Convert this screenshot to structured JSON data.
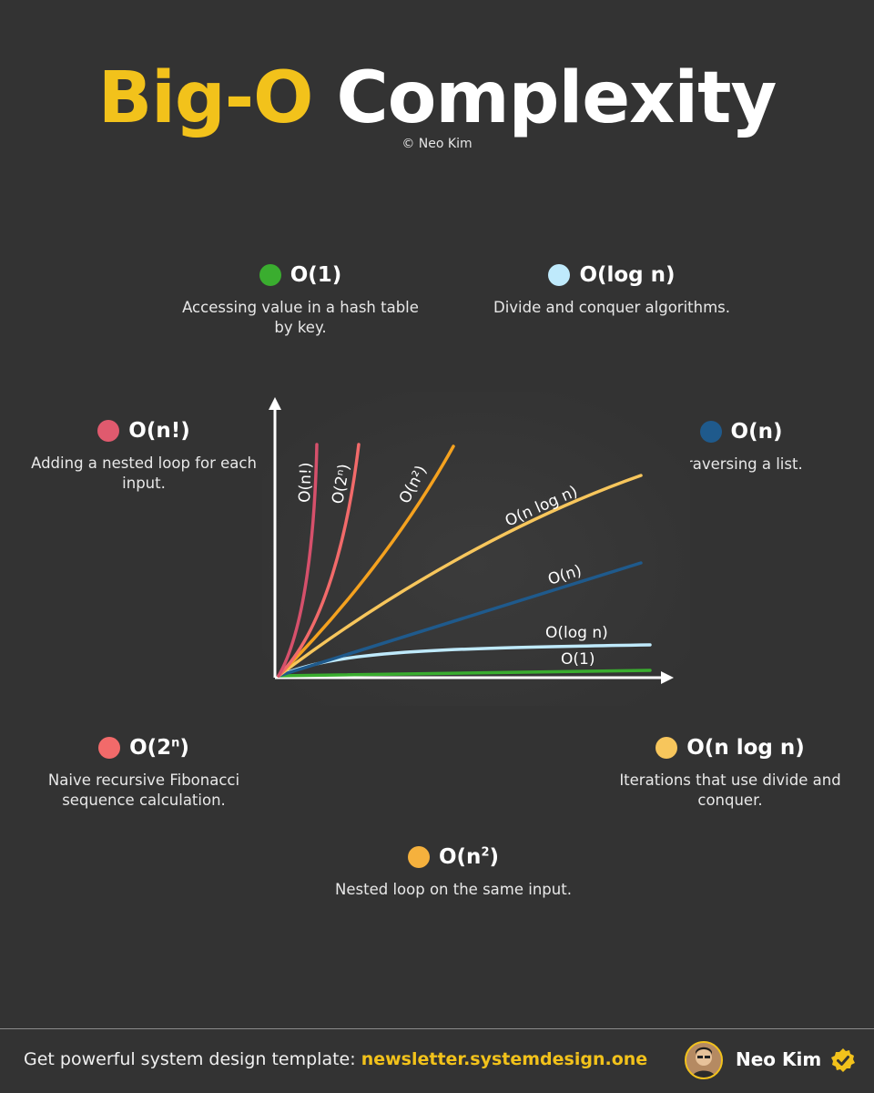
{
  "header": {
    "title_highlight": "Big-O",
    "title_rest": "Complexity",
    "copyright": "© Neo Kim"
  },
  "legend": [
    {
      "label": "O(1)",
      "description": "Accessing value in a hash table by key.",
      "color": "#3aad2f"
    },
    {
      "label": "O(log n)",
      "description": "Divide and conquer algorithms.",
      "color": "#bfeafc"
    },
    {
      "label": "O(n!)",
      "description": "Adding a nested loop for each input.",
      "color": "#e05a6e"
    },
    {
      "label": "O(n)",
      "description": "Traversing a list.",
      "color": "#1f5a8c"
    },
    {
      "label_base": "O(2",
      "label_sup": "n",
      "label_end": ")",
      "description": "Naive recursive Fibonacci sequence calculation.",
      "color": "#f26a6a"
    },
    {
      "label": "O(n log n)",
      "description": "Iterations that use divide and conquer.",
      "color": "#f7c65c"
    },
    {
      "label_base": "O(n",
      "label_sup": "2",
      "label_end": ")",
      "description": "Nested loop on the same input.",
      "color": "#f5b13d"
    }
  ],
  "chart_data": {
    "type": "line",
    "series": [
      {
        "name": "O(1)",
        "color": "#3aad2f"
      },
      {
        "name": "O(log n)",
        "color": "#bfeafc"
      },
      {
        "name": "O(n)",
        "color": "#1f5a8c"
      },
      {
        "name": "O(n log n)",
        "color": "#f7c65c"
      },
      {
        "name": "O(n²)",
        "color": "#f5a21f"
      },
      {
        "name": "O(2ⁿ)",
        "color": "#f26a6a"
      },
      {
        "name": "O(n!)",
        "color": "#d6506b"
      }
    ],
    "grid": false
  },
  "footer": {
    "promo_text": "Get powerful system design template: ",
    "link_text": "newsletter.systemdesign.one",
    "author": "Neo Kim"
  }
}
